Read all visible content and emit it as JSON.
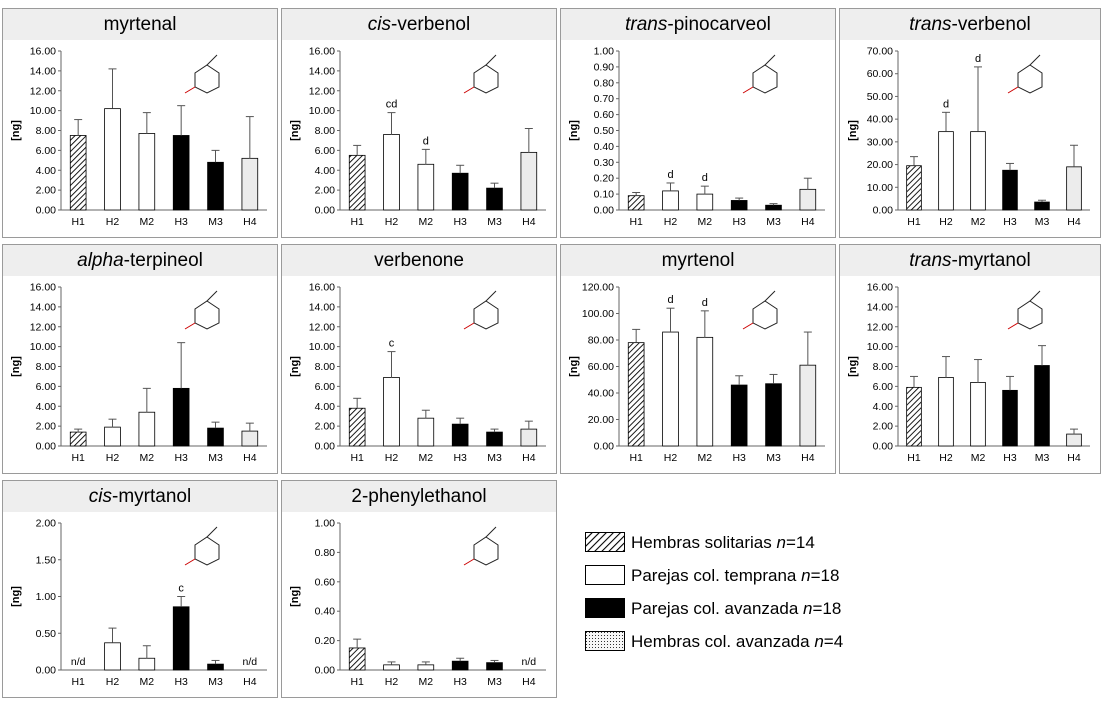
{
  "legend": {
    "items": [
      {
        "label": "Hembras solitarias",
        "n_symbol": "n",
        "n_value": "=14",
        "fill": "hatch"
      },
      {
        "label": "Parejas col. temprana",
        "n_symbol": "n",
        "n_value": "=18",
        "fill": "white"
      },
      {
        "label": "Parejas col. avanzada",
        "n_symbol": "n",
        "n_value": "=18",
        "fill": "black"
      },
      {
        "label": "Hembras col. avanzada",
        "n_symbol": "n",
        "n_value": "=4",
        "fill": "dots"
      }
    ]
  },
  "colors": {
    "black_bar": "#000000",
    "light_bar": "#ececec",
    "dots_bg": "#f2f2f2",
    "title_bg": "#eeeeee",
    "frame": "#9a9a9a"
  },
  "chart_data": [
    {
      "type": "bar",
      "title_prefix": "",
      "title_main": "myrtenal",
      "ylabel": "[ng]",
      "ylim": [
        0,
        16
      ],
      "yticks": [
        "0.00",
        "2.00",
        "4.00",
        "6.00",
        "8.00",
        "10.00",
        "12.00",
        "14.00",
        "16.00"
      ],
      "tickstep": 2,
      "categories": [
        "H1",
        "H2",
        "M2",
        "H3",
        "M3",
        "H4"
      ],
      "values": [
        7.5,
        10.2,
        7.7,
        7.5,
        4.8,
        5.2
      ],
      "errors": [
        1.6,
        4.0,
        2.1,
        3.0,
        1.2,
        4.2
      ],
      "letters": [
        "",
        "",
        "",
        "",
        "",
        ""
      ],
      "fills": [
        "hatch",
        "white",
        "white",
        "black",
        "black",
        "light"
      ]
    },
    {
      "type": "bar",
      "title_prefix": "cis",
      "title_main": "-verbenol",
      "ylabel": "[ng]",
      "ylim": [
        0,
        16
      ],
      "yticks": [
        "0.00",
        "2.00",
        "4.00",
        "6.00",
        "8.00",
        "10.00",
        "12.00",
        "14.00",
        "16.00"
      ],
      "tickstep": 2,
      "categories": [
        "H1",
        "H2",
        "M2",
        "H3",
        "M3",
        "H4"
      ],
      "values": [
        5.5,
        7.6,
        4.6,
        3.7,
        2.2,
        5.8
      ],
      "errors": [
        1.0,
        2.2,
        1.5,
        0.8,
        0.5,
        2.4
      ],
      "letters": [
        "",
        "cd",
        "d",
        "",
        "",
        ""
      ],
      "fills": [
        "hatch",
        "white",
        "white",
        "black",
        "black",
        "light"
      ]
    },
    {
      "type": "bar",
      "title_prefix": "trans",
      "title_main": "-pinocarveol",
      "ylabel": "[ng]",
      "ylim": [
        0,
        1
      ],
      "yticks": [
        "0.00",
        "0.10",
        "0.20",
        "0.30",
        "0.40",
        "0.50",
        "0.60",
        "0.70",
        "0.80",
        "0.90",
        "1.00"
      ],
      "tickstep": 0.1,
      "categories": [
        "H1",
        "H2",
        "M2",
        "H3",
        "M3",
        "H4"
      ],
      "values": [
        0.09,
        0.12,
        0.1,
        0.06,
        0.03,
        0.13
      ],
      "errors": [
        0.02,
        0.05,
        0.05,
        0.015,
        0.01,
        0.07
      ],
      "letters": [
        "",
        "d",
        "d",
        "",
        "",
        ""
      ],
      "fills": [
        "hatch",
        "white",
        "white",
        "black",
        "black",
        "light"
      ]
    },
    {
      "type": "bar",
      "title_prefix": "trans",
      "title_main": "-verbenol",
      "ylabel": "[ng]",
      "ylim": [
        0,
        70
      ],
      "yticks": [
        "0.00",
        "10.00",
        "20.00",
        "30.00",
        "40.00",
        "50.00",
        "60.00",
        "70.00"
      ],
      "tickstep": 10,
      "categories": [
        "H1",
        "H2",
        "M2",
        "H3",
        "M3",
        "H4"
      ],
      "values": [
        19.5,
        34.5,
        34.5,
        17.5,
        3.5,
        19.0
      ],
      "errors": [
        4.0,
        8.5,
        28.5,
        3.0,
        0.8,
        9.5
      ],
      "letters": [
        "",
        "d",
        "d",
        "",
        "",
        ""
      ],
      "fills": [
        "hatch",
        "white",
        "white",
        "black",
        "black",
        "light"
      ]
    },
    {
      "type": "bar",
      "title_prefix": "alpha",
      "title_main": "-terpineol",
      "ylabel": "[ng]",
      "ylim": [
        0,
        16
      ],
      "yticks": [
        "0.00",
        "2.00",
        "4.00",
        "6.00",
        "8.00",
        "10.00",
        "12.00",
        "14.00",
        "16.00"
      ],
      "tickstep": 2,
      "categories": [
        "H1",
        "H2",
        "M2",
        "H3",
        "M3",
        "H4"
      ],
      "values": [
        1.4,
        1.9,
        3.4,
        5.8,
        1.8,
        1.5
      ],
      "errors": [
        0.3,
        0.8,
        2.4,
        4.6,
        0.6,
        0.8
      ],
      "letters": [
        "",
        "",
        "",
        "",
        "",
        ""
      ],
      "fills": [
        "hatch",
        "white",
        "white",
        "black",
        "black",
        "light"
      ]
    },
    {
      "type": "bar",
      "title_prefix": "",
      "title_main": "verbenone",
      "ylabel": "[ng]",
      "ylim": [
        0,
        16
      ],
      "yticks": [
        "0.00",
        "2.00",
        "4.00",
        "6.00",
        "8.00",
        "10.00",
        "12.00",
        "14.00",
        "16.00"
      ],
      "tickstep": 2,
      "categories": [
        "H1",
        "H2",
        "M2",
        "H3",
        "M3",
        "H4"
      ],
      "values": [
        3.8,
        6.9,
        2.8,
        2.2,
        1.4,
        1.7
      ],
      "errors": [
        1.0,
        2.6,
        0.8,
        0.6,
        0.3,
        0.8
      ],
      "letters": [
        "",
        "c",
        "",
        "",
        "",
        ""
      ],
      "fills": [
        "hatch",
        "white",
        "white",
        "black",
        "black",
        "light"
      ]
    },
    {
      "type": "bar",
      "title_prefix": "",
      "title_main": "myrtenol",
      "ylabel": "[ng]",
      "ylim": [
        0,
        120
      ],
      "yticks": [
        "0.00",
        "20.00",
        "40.00",
        "60.00",
        "80.00",
        "100.00",
        "120.00"
      ],
      "tickstep": 20,
      "categories": [
        "H1",
        "H2",
        "M2",
        "H3",
        "M3",
        "H4"
      ],
      "values": [
        78,
        86,
        82,
        46,
        47,
        61
      ],
      "errors": [
        10,
        18,
        20,
        7,
        7,
        25
      ],
      "letters": [
        "",
        "d",
        "d",
        "",
        "",
        ""
      ],
      "fills": [
        "hatch",
        "white",
        "white",
        "black",
        "black",
        "light"
      ]
    },
    {
      "type": "bar",
      "title_prefix": "trans",
      "title_main": "-myrtanol",
      "ylabel": "[ng]",
      "ylim": [
        0,
        16
      ],
      "yticks": [
        "0.00",
        "2.00",
        "4.00",
        "6.00",
        "8.00",
        "10.00",
        "12.00",
        "14.00",
        "16.00"
      ],
      "tickstep": 2,
      "categories": [
        "H1",
        "H2",
        "M2",
        "H3",
        "M3",
        "H4"
      ],
      "values": [
        5.9,
        6.9,
        6.4,
        5.6,
        8.1,
        1.2
      ],
      "errors": [
        1.1,
        2.1,
        2.3,
        1.4,
        2.0,
        0.5
      ],
      "letters": [
        "",
        "",
        "",
        "",
        "",
        ""
      ],
      "fills": [
        "hatch",
        "white",
        "white",
        "black",
        "black",
        "light"
      ]
    },
    {
      "type": "bar",
      "title_prefix": "cis",
      "title_main": "-myrtanol",
      "ylabel": "[ng]",
      "ylim": [
        0,
        2
      ],
      "yticks": [
        "0.00",
        "0.50",
        "1.00",
        "1.50",
        "2.00"
      ],
      "tickstep": 0.5,
      "categories": [
        "H1",
        "H2",
        "M2",
        "H3",
        "M3",
        "H4"
      ],
      "values": [
        0,
        0.37,
        0.16,
        0.86,
        0.08,
        0
      ],
      "errors": [
        0,
        0.2,
        0.17,
        0.14,
        0.05,
        0
      ],
      "letters": [
        "",
        "",
        "",
        "c",
        "",
        ""
      ],
      "na": [
        true,
        false,
        false,
        false,
        false,
        true
      ],
      "na_label": "n/d",
      "fills": [
        "hatch",
        "white",
        "white",
        "black",
        "black",
        "light"
      ]
    },
    {
      "type": "bar",
      "title_prefix": "",
      "title_main": "2-phenylethanol",
      "ylabel": "[ng]",
      "ylim": [
        0,
        1
      ],
      "yticks": [
        "0.00",
        "0.20",
        "0.40",
        "0.60",
        "0.80",
        "1.00"
      ],
      "tickstep": 0.2,
      "categories": [
        "H1",
        "H2",
        "M2",
        "H3",
        "M3",
        "H4"
      ],
      "values": [
        0.15,
        0.035,
        0.035,
        0.06,
        0.05,
        0
      ],
      "errors": [
        0.06,
        0.02,
        0.02,
        0.02,
        0.015,
        0
      ],
      "letters": [
        "",
        "",
        "",
        "",
        "",
        ""
      ],
      "na": [
        false,
        false,
        false,
        false,
        false,
        true
      ],
      "na_label": "n/d",
      "fills": [
        "hatch",
        "white",
        "white",
        "black",
        "black",
        "light"
      ]
    }
  ]
}
